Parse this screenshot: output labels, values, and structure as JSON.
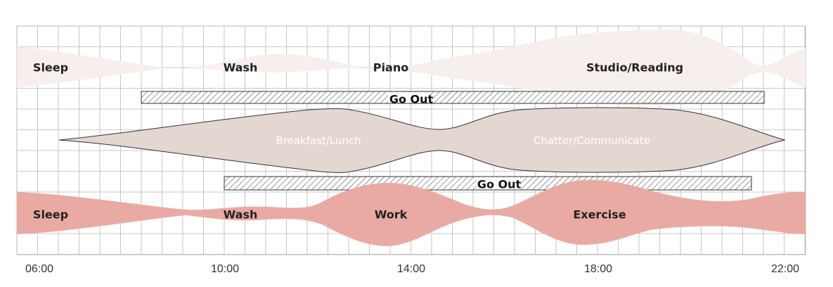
{
  "time_ticks": [
    "06:00",
    "10:00",
    "14:00",
    "18:00",
    "22:00"
  ],
  "rows": {
    "top_activities": {
      "sleep": "Sleep",
      "wash": "Wash",
      "piano": "Piano",
      "studio": "Studio/Reading"
    },
    "go_out_top": "Go Out",
    "middle_activities": {
      "breakfast": "Breakfast/Lunch",
      "chatter": "Chatter/Communicate"
    },
    "go_out_bottom": "Go Out",
    "bottom_activities": {
      "sleep": "Sleep",
      "wash": "Wash",
      "work": "Work",
      "exercise": "Exercise"
    }
  },
  "colors": {
    "grid": "#b8b8b8",
    "top_band": "#f6efec",
    "middle_band": "#e4d6d1",
    "bottom_band": "#eaaaa4",
    "hatch": "#555555"
  }
}
